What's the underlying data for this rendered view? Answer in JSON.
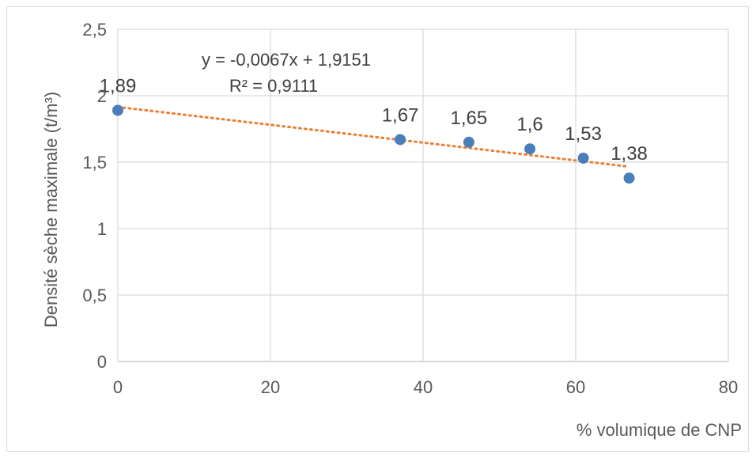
{
  "chart_data": {
    "type": "scatter",
    "x": [
      0,
      37,
      46,
      54,
      61,
      67
    ],
    "y": [
      1.89,
      1.67,
      1.65,
      1.6,
      1.53,
      1.38
    ],
    "data_labels": [
      "1,89",
      "1,67",
      "1,65",
      "1,6",
      "1,53",
      "1,38"
    ],
    "xlabel": "% volumique de CNP",
    "ylabel": "Densité sèche maximale (t/m³)",
    "xlim": [
      0,
      80
    ],
    "ylim": [
      0,
      2.5
    ],
    "x_ticks": [
      0,
      20,
      40,
      60,
      80
    ],
    "x_tick_labels": [
      "0",
      "20",
      "40",
      "60",
      "80"
    ],
    "y_ticks": [
      0,
      0.5,
      1,
      1.5,
      2,
      2.5
    ],
    "y_tick_labels": [
      "0",
      "0,5",
      "1",
      "1,5",
      "2",
      "2,5"
    ],
    "grid": true,
    "trendline": {
      "type": "linear",
      "slope": -0.0067,
      "intercept": 1.9151,
      "x_range": [
        0,
        67
      ],
      "equation": "y = -0,0067x + 1,9151",
      "r_squared": "R² = 0,9111"
    },
    "colors": {
      "points": "#4a7ebb",
      "trendline": "#ed7d31"
    }
  }
}
